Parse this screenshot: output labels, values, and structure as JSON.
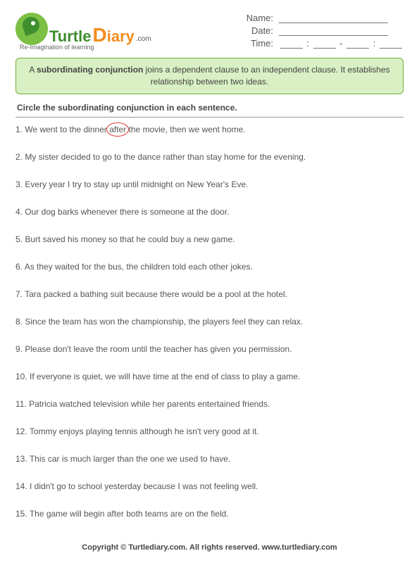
{
  "brand": {
    "name_part1": "Turtle",
    "name_part2_first": "D",
    "name_part2_rest": "iary",
    "domain": ".com",
    "tagline": "Re-Imagination of learning",
    "colors": {
      "turtle": "#3f8f2e",
      "diary": "#f28c1e",
      "icon_bg": "#7bbf44"
    }
  },
  "info": {
    "name_label": "Name:",
    "date_label": "Date:",
    "time_label": "Time:",
    "time_sep1": ":",
    "time_dash": "-",
    "time_sep2": ":"
  },
  "instruction": {
    "pre": "A ",
    "bold": "subordinating conjunction",
    "post": " joins a dependent clause to an independent clause. It establishes relationship between two ideas.",
    "box_bg": "#d8f0c4",
    "box_border": "#6fae3a"
  },
  "directions": "Circle the subordinating conjunction in each sentence.",
  "example_circle": {
    "word": "after",
    "color": "#d33"
  },
  "questions": [
    {
      "n": "1.",
      "pre": "We went to the dinner ",
      "circled": "after",
      "post": " the movie, then we went home."
    },
    {
      "n": "2.",
      "text": "My sister decided to go to the dance rather than stay home for the evening."
    },
    {
      "n": "3.",
      "text": "Every year I try to stay up until midnight on New Year's Eve."
    },
    {
      "n": "4.",
      "text": "Our dog barks whenever there is someone at the door."
    },
    {
      "n": "5.",
      "text": "Burt saved his money so that he could buy a new game."
    },
    {
      "n": "6.",
      "text": "As they waited for the bus, the children told each other jokes."
    },
    {
      "n": "7.",
      "text": "Tara packed a bathing suit because there would be a pool at the hotel."
    },
    {
      "n": "8.",
      "text": "Since the team has won the championship, the players feel they can relax."
    },
    {
      "n": "9.",
      "text": "Please don't leave the room until the teacher has given you permission."
    },
    {
      "n": "10.",
      "text": "If everyone is quiet, we will have time at the end of class to play a game."
    },
    {
      "n": "11.",
      "text": "Patricia watched television while her parents entertained friends."
    },
    {
      "n": "12.",
      "text": "Tommy enjoys playing tennis although he isn't very good at it."
    },
    {
      "n": "13.",
      "text": "This car is much larger than the one we used to have."
    },
    {
      "n": "14.",
      "text": "I didn't go to school yesterday because I was not feeling well."
    },
    {
      "n": "15.",
      "text": "The game will begin after both teams are on the field."
    }
  ],
  "footer": "Copyright © Turtlediary.com. All rights reserved. www.turtlediary.com"
}
